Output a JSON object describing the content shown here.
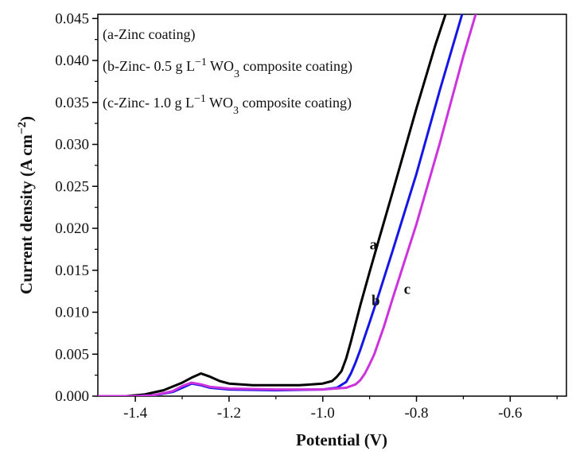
{
  "chart_data": {
    "type": "line",
    "title": "",
    "xlabel": "Potential (V)",
    "ylabel": "Current density (A cm",
    "ylabel_sup": "−2",
    "ylabel_close": ")",
    "xlim": [
      -1.48,
      -0.48
    ],
    "ylim": [
      0,
      0.0455
    ],
    "x_ticks": [
      -1.4,
      -1.2,
      -1.0,
      -0.8,
      -0.6
    ],
    "x_tick_labels": [
      "-1.4",
      "-1.2",
      "-1.0",
      "-0.8",
      "-0.6"
    ],
    "y_ticks": [
      0,
      0.005,
      0.01,
      0.015,
      0.02,
      0.025,
      0.03,
      0.035,
      0.04,
      0.045
    ],
    "y_tick_labels": [
      "0.000",
      "0.005",
      "0.010",
      "0.015",
      "0.020",
      "0.025",
      "0.030",
      "0.035",
      "0.040",
      "0.045"
    ],
    "grid": false,
    "legend_position": "top-left",
    "legend": [
      {
        "prefix": "(a-Zinc coating)",
        "sup": "",
        "mid": "",
        "sub": "",
        "suffix": ""
      },
      {
        "prefix": "(b-Zinc- 0.5 g L",
        "sup": "−1",
        "mid": " WO",
        "sub": "3",
        "suffix": " composite coating)"
      },
      {
        "prefix": "(c-Zinc- 1.0 g L",
        "sup": "−1",
        "mid": " WO",
        "sub": "3",
        "suffix": " composite coating)"
      }
    ],
    "series": [
      {
        "label": "a",
        "color": "#000000",
        "x": [
          -1.48,
          -1.42,
          -1.38,
          -1.34,
          -1.3,
          -1.28,
          -1.26,
          -1.24,
          -1.22,
          -1.2,
          -1.15,
          -1.1,
          -1.05,
          -1.0,
          -0.98,
          -0.97,
          -0.96,
          -0.95,
          -0.94,
          -0.92,
          -0.9,
          -0.88,
          -0.85,
          -0.8,
          -0.76,
          -0.735
        ],
        "y": [
          0.0,
          0.0,
          0.0002,
          0.0007,
          0.0016,
          0.0022,
          0.0027,
          0.0023,
          0.0018,
          0.0015,
          0.0013,
          0.0013,
          0.0013,
          0.0015,
          0.0018,
          0.0023,
          0.003,
          0.0045,
          0.0065,
          0.0108,
          0.0148,
          0.0187,
          0.0245,
          0.0343,
          0.0418,
          0.046
        ]
      },
      {
        "label": "b",
        "color": "#1515e6",
        "x": [
          -1.48,
          -1.4,
          -1.36,
          -1.32,
          -1.3,
          -1.28,
          -1.26,
          -1.24,
          -1.2,
          -1.1,
          -1.0,
          -0.97,
          -0.95,
          -0.94,
          -0.93,
          -0.92,
          -0.9,
          -0.88,
          -0.85,
          -0.8,
          -0.75,
          -0.7
        ],
        "y": [
          0.0,
          0.0,
          0.0001,
          0.0005,
          0.001,
          0.0015,
          0.0013,
          0.001,
          0.0008,
          0.0007,
          0.0008,
          0.001,
          0.0017,
          0.0027,
          0.004,
          0.0055,
          0.0088,
          0.0122,
          0.0175,
          0.0265,
          0.0365,
          0.046
        ]
      },
      {
        "label": "c",
        "color": "#cc33dd",
        "x": [
          -1.48,
          -1.4,
          -1.36,
          -1.32,
          -1.3,
          -1.28,
          -1.26,
          -1.24,
          -1.2,
          -1.1,
          -1.0,
          -0.95,
          -0.93,
          -0.92,
          -0.91,
          -0.9,
          -0.89,
          -0.87,
          -0.85,
          -0.8,
          -0.75,
          -0.7,
          -0.67
        ],
        "y": [
          0.0,
          0.0,
          0.0001,
          0.0006,
          0.0012,
          0.0016,
          0.0014,
          0.0011,
          0.0009,
          0.0008,
          0.0008,
          0.001,
          0.0014,
          0.0019,
          0.0027,
          0.0038,
          0.005,
          0.0082,
          0.0118,
          0.0205,
          0.0302,
          0.0405,
          0.0462
        ]
      }
    ],
    "annotations": [
      {
        "text": "a",
        "x": -0.9,
        "y": 0.0175
      },
      {
        "text": "b",
        "x": -0.896,
        "y": 0.0108
      },
      {
        "text": "c",
        "x": -0.827,
        "y": 0.0122
      }
    ]
  }
}
